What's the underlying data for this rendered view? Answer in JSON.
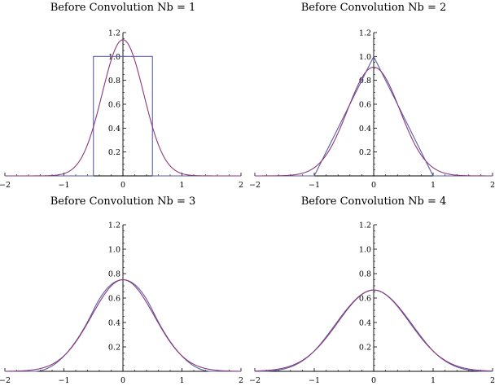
{
  "chart_data": [
    {
      "type": "line",
      "title": "Before Convolution Nb = 1",
      "xlim": [
        -2,
        2
      ],
      "ylim": [
        0,
        1.2
      ],
      "x_ticks": [
        -2,
        -1,
        0,
        1,
        2
      ],
      "y_ticks": [
        0.2,
        0.4,
        0.6,
        0.8,
        1.0,
        1.2
      ],
      "x_tick_labels": [
        "−2",
        "−1",
        "0",
        "1",
        "2"
      ],
      "y_tick_labels": [
        "0.2",
        "0.4",
        "0.6",
        "0.8",
        "1.0",
        "1.2"
      ],
      "grid": false,
      "series": [
        {
          "color": "#5b5ea6",
          "x": [
            -2,
            -0.5,
            -0.5,
            0.5,
            0.5,
            2
          ],
          "y": [
            0,
            0,
            1,
            1,
            0,
            0
          ]
        },
        {
          "color": "#8b3a7a",
          "sigma": 0.35,
          "peak": 1.14
        }
      ]
    },
    {
      "type": "line",
      "title": "Before Convolution Nb = 2",
      "xlim": [
        -2,
        2
      ],
      "ylim": [
        0,
        1.2
      ],
      "x_ticks": [
        -2,
        -1,
        0,
        1,
        2
      ],
      "y_ticks": [
        0.2,
        0.4,
        0.6,
        0.8,
        1.0,
        1.2
      ],
      "x_tick_labels": [
        "−2",
        "−1",
        "0",
        "1",
        "2"
      ],
      "y_tick_labels": [
        "0.2",
        "0.4",
        "0.6",
        "0.8",
        "1.0",
        "1.2"
      ],
      "grid": false,
      "series": [
        {
          "color": "#5b5ea6",
          "x": [
            -2,
            -1,
            0,
            1,
            2
          ],
          "y": [
            0,
            0,
            1,
            0,
            0
          ]
        },
        {
          "color": "#8b3a7a",
          "sigma": 0.44,
          "peak": 0.91
        }
      ]
    },
    {
      "type": "line",
      "title": "Before Convolution Nb = 3",
      "xlim": [
        -2,
        2
      ],
      "ylim": [
        0,
        1.2
      ],
      "x_ticks": [
        -2,
        -1,
        0,
        1,
        2
      ],
      "y_ticks": [
        0.2,
        0.4,
        0.6,
        0.8,
        1.0,
        1.2
      ],
      "x_tick_labels": [
        "−2",
        "−1",
        "0",
        "1",
        "2"
      ],
      "y_tick_labels": [
        "0.2",
        "0.4",
        "0.6",
        "0.8",
        "1.0",
        "1.2"
      ],
      "grid": false,
      "series": [
        {
          "color": "#5b5ea6",
          "bspline": 3
        },
        {
          "color": "#8b3a7a",
          "sigma": 0.53,
          "peak": 0.75
        }
      ]
    },
    {
      "type": "line",
      "title": "Before Convolution Nb = 4",
      "xlim": [
        -2,
        2
      ],
      "ylim": [
        0,
        1.2
      ],
      "x_ticks": [
        -2,
        -1,
        0,
        1,
        2
      ],
      "y_ticks": [
        0.2,
        0.4,
        0.6,
        0.8,
        1.0,
        1.2
      ],
      "x_tick_labels": [
        "−2",
        "−1",
        "0",
        "1",
        "2"
      ],
      "y_tick_labels": [
        "0.2",
        "0.4",
        "0.6",
        "0.8",
        "1.0",
        "1.2"
      ],
      "grid": false,
      "series": [
        {
          "color": "#5b5ea6",
          "bspline": 4
        },
        {
          "color": "#8b3a7a",
          "sigma": 0.6,
          "peak": 0.665
        }
      ]
    }
  ]
}
